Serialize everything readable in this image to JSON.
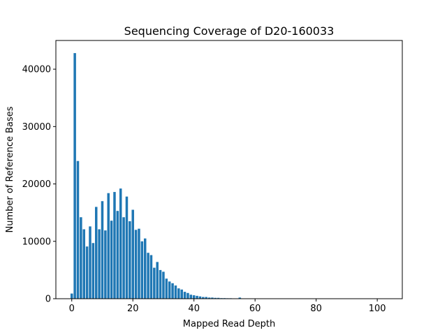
{
  "chart_data": {
    "type": "bar",
    "title": "Sequencing Coverage of D20-160033",
    "xlabel": "Mapped Read Depth",
    "ylabel": "Number of Reference Bases",
    "xlim": [
      -5.2,
      108.2
    ],
    "ylim": [
      0,
      45000
    ],
    "xticks": [
      0,
      20,
      40,
      60,
      80,
      100
    ],
    "yticks": [
      0,
      10000,
      20000,
      30000,
      40000
    ],
    "bar_color": "#1f77b4",
    "grid": false,
    "x": [
      0,
      1,
      2,
      3,
      4,
      5,
      6,
      7,
      8,
      9,
      10,
      11,
      12,
      13,
      14,
      15,
      16,
      17,
      18,
      19,
      20,
      21,
      22,
      23,
      24,
      25,
      26,
      27,
      28,
      29,
      30,
      31,
      32,
      33,
      34,
      35,
      36,
      37,
      38,
      39,
      40,
      41,
      42,
      43,
      44,
      45,
      46,
      47,
      48,
      49,
      50,
      51,
      52,
      53,
      54,
      55,
      56,
      57,
      58,
      59,
      60,
      61,
      62,
      63,
      64,
      65,
      66,
      67,
      68,
      69,
      70,
      71,
      72,
      73,
      74,
      75,
      76,
      77,
      78,
      79,
      80,
      81,
      82,
      83,
      84,
      85,
      86,
      87,
      88,
      89,
      90,
      91,
      92,
      93,
      94,
      95,
      96,
      97,
      98,
      99,
      100,
      101,
      102,
      103
    ],
    "values": [
      900,
      42800,
      24000,
      14200,
      12100,
      9100,
      12600,
      9700,
      16000,
      12100,
      17000,
      11900,
      18400,
      13600,
      18600,
      15300,
      19200,
      14200,
      17800,
      13500,
      15500,
      12000,
      12200,
      10000,
      10500,
      8000,
      7600,
      5400,
      6400,
      5000,
      4700,
      3500,
      3000,
      2700,
      2300,
      1800,
      1600,
      1200,
      1000,
      700,
      600,
      500,
      400,
      300,
      300,
      200,
      200,
      150,
      150,
      100,
      100,
      80,
      80,
      50,
      50,
      200,
      30,
      30,
      20,
      20,
      15,
      15,
      10,
      10,
      10,
      10,
      8,
      8,
      5,
      5,
      5,
      5,
      5,
      5,
      5,
      5,
      5,
      5,
      5,
      5,
      5,
      5,
      5,
      5,
      5,
      5,
      5,
      5,
      5,
      5,
      5,
      5,
      5,
      5,
      5,
      5,
      5,
      5,
      5,
      5,
      5,
      5,
      5,
      5
    ]
  }
}
